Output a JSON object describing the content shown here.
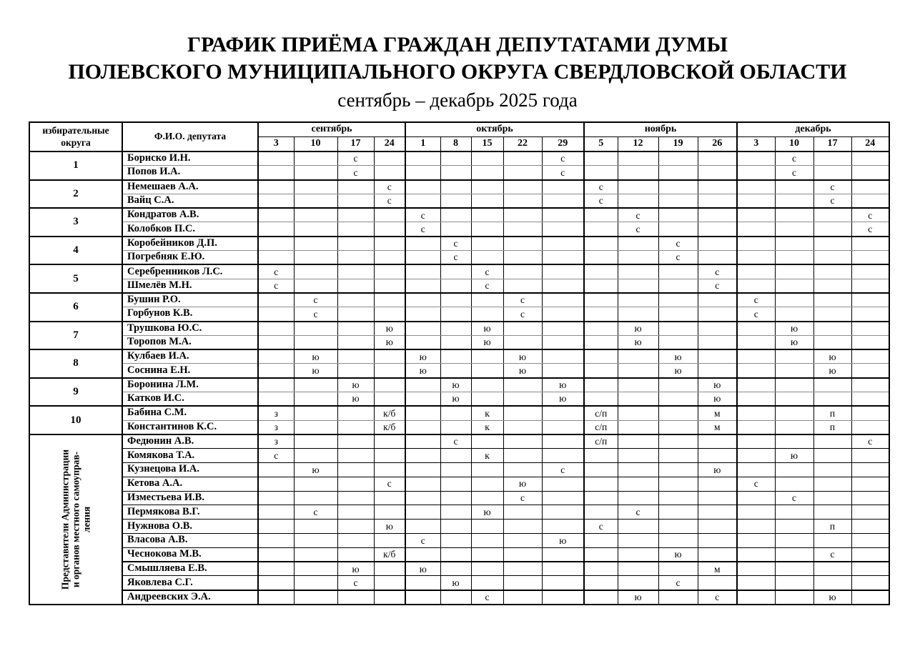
{
  "title": {
    "line1": "ГРАФИК ПРИЁМА ГРАЖДАН ДЕПУТАТАМИ ДУМЫ",
    "line2": "ПОЛЕВСКОГО МУНИЦИПАЛЬНОГО ОКРУГА СВЕРДЛОВСКОЙ ОБЛАСТИ",
    "line3": "сентябрь – декабрь 2025 года"
  },
  "table": {
    "header": {
      "col_district": "избирательные округа",
      "col_name": "Ф.И.О. депутата",
      "months": [
        {
          "label": "сентябрь",
          "days": [
            {
              "key": "sep3",
              "label": "3"
            },
            {
              "key": "sep10",
              "label": "10"
            },
            {
              "key": "sep17",
              "label": "17"
            },
            {
              "key": "sep24",
              "label": "24"
            }
          ]
        },
        {
          "label": "октябрь",
          "days": [
            {
              "key": "oct1",
              "label": "1"
            },
            {
              "key": "oct8",
              "label": "8"
            },
            {
              "key": "oct15",
              "label": "15"
            },
            {
              "key": "oct22",
              "label": "22"
            },
            {
              "key": "oct29",
              "label": "29"
            }
          ]
        },
        {
          "label": "ноябрь",
          "days": [
            {
              "key": "nov5",
              "label": "5"
            },
            {
              "key": "nov12",
              "label": "12"
            },
            {
              "key": "nov19",
              "label": "19"
            },
            {
              "key": "nov26",
              "label": "26"
            }
          ]
        },
        {
          "label": "декабрь",
          "days": [
            {
              "key": "dec3",
              "label": "3"
            },
            {
              "key": "dec10",
              "label": "10"
            },
            {
              "key": "dec17",
              "label": "17"
            },
            {
              "key": "dec24",
              "label": "24"
            }
          ]
        }
      ]
    },
    "districts": [
      {
        "number": "1",
        "deputies": [
          {
            "name": "Бориско И.Н.",
            "marks": {
              "sep17": "с",
              "oct29": "с",
              "dec10": "с"
            }
          },
          {
            "name": "Попов И.А.",
            "marks": {
              "sep17": "с",
              "oct29": "с",
              "dec10": "с"
            }
          }
        ]
      },
      {
        "number": "2",
        "deputies": [
          {
            "name": "Немешаев А.А.",
            "marks": {
              "sep24": "с",
              "nov5": "с",
              "dec17": "с"
            }
          },
          {
            "name": "Вайц С.А.",
            "marks": {
              "sep24": "с",
              "nov5": "с",
              "dec17": "с"
            }
          }
        ]
      },
      {
        "number": "3",
        "deputies": [
          {
            "name": "Кондратов А.В.",
            "marks": {
              "oct1": "с",
              "nov12": "с",
              "dec24": "с"
            }
          },
          {
            "name": "Колобков П.С.",
            "marks": {
              "oct1": "с",
              "nov12": "с",
              "dec24": "с"
            }
          }
        ]
      },
      {
        "number": "4",
        "deputies": [
          {
            "name": "Коробейников Д.П.",
            "marks": {
              "oct8": "с",
              "nov19": "с"
            }
          },
          {
            "name": "Погребняк Е.Ю.",
            "marks": {
              "oct8": "с",
              "nov19": "с"
            }
          }
        ]
      },
      {
        "number": "5",
        "deputies": [
          {
            "name": "Серебренников Л.С.",
            "marks": {
              "sep3": "с",
              "oct15": "с",
              "nov26": "с"
            }
          },
          {
            "name": "Шмелёв М.Н.",
            "marks": {
              "sep3": "с",
              "oct15": "с",
              "nov26": "с"
            }
          }
        ]
      },
      {
        "number": "6",
        "deputies": [
          {
            "name": "Бушин Р.О.",
            "marks": {
              "sep10": "с",
              "oct22": "с",
              "dec3": "с"
            }
          },
          {
            "name": "Горбунов К.В.",
            "marks": {
              "sep10": "с",
              "oct22": "с",
              "dec3": "с"
            }
          }
        ]
      },
      {
        "number": "7",
        "deputies": [
          {
            "name": "Трушкова Ю.С.",
            "marks": {
              "sep24": "ю",
              "oct15": "ю",
              "nov12": "ю",
              "dec10": "ю"
            }
          },
          {
            "name": "Торопов М.А.",
            "marks": {
              "sep24": "ю",
              "oct15": "ю",
              "nov12": "ю",
              "dec10": "ю"
            }
          }
        ]
      },
      {
        "number": "8",
        "deputies": [
          {
            "name": "Кулбаев И.А.",
            "marks": {
              "sep10": "ю",
              "oct1": "ю",
              "oct22": "ю",
              "nov19": "ю",
              "dec17": "ю"
            }
          },
          {
            "name": "Соснина Е.Н.",
            "marks": {
              "sep10": "ю",
              "oct1": "ю",
              "oct22": "ю",
              "nov19": "ю",
              "dec17": "ю"
            }
          }
        ]
      },
      {
        "number": "9",
        "deputies": [
          {
            "name": "Боронина Л.М.",
            "marks": {
              "sep17": "ю",
              "oct8": "ю",
              "oct29": "ю",
              "nov26": "ю"
            }
          },
          {
            "name": "Катков И.С.",
            "marks": {
              "sep17": "ю",
              "oct8": "ю",
              "oct29": "ю",
              "nov26": "ю"
            }
          }
        ]
      },
      {
        "number": "10",
        "deputies": [
          {
            "name": "Бабина С.М.",
            "marks": {
              "sep3": "з",
              "sep24": "к/б",
              "oct15": "к",
              "nov5": "с/п",
              "nov26": "м",
              "dec17": "п"
            }
          },
          {
            "name": "Константинов К.С.",
            "marks": {
              "sep3": "з",
              "sep24": "к/б",
              "oct15": "к",
              "nov5": "с/п",
              "nov26": "м",
              "dec17": "п"
            }
          }
        ]
      }
    ],
    "admin_section": {
      "label_lines": [
        "Представители Администрации",
        "и органов местного самоуправ-",
        "ления"
      ],
      "rows": [
        {
          "name": "Федюнин А.В.",
          "marks": {
            "sep3": "з",
            "oct8": "с",
            "nov5": "с/п",
            "dec24": "с"
          }
        },
        {
          "name": "Комякова Т.А.",
          "marks": {
            "sep3": "с",
            "oct15": "к",
            "dec10": "ю"
          }
        },
        {
          "name": "Кузнецова И.А.",
          "marks": {
            "sep10": "ю",
            "oct29": "с",
            "nov26": "ю"
          }
        },
        {
          "name": "Кетова А.А.",
          "marks": {
            "sep24": "с",
            "oct22": "ю",
            "dec3": "с"
          }
        },
        {
          "name": "Изместьева И.В.",
          "marks": {
            "oct22": "с",
            "dec10": "с"
          }
        },
        {
          "name": "Пермякова В.Г.",
          "marks": {
            "sep10": "с",
            "oct15": "ю",
            "nov12": "с"
          }
        },
        {
          "name": "Нужнова О.В.",
          "marks": {
            "sep24": "ю",
            "nov5": "с",
            "dec17": "п"
          }
        },
        {
          "name": "Власова А.В.",
          "marks": {
            "oct1": "с",
            "oct29": "ю"
          }
        },
        {
          "name": "Чеснокова М.В.",
          "marks": {
            "sep24": "к/б",
            "nov19": "ю",
            "dec17": "с"
          }
        },
        {
          "name": "Смышляева Е.В.",
          "marks": {
            "sep17": "ю",
            "oct1": "ю",
            "nov26": "м"
          }
        },
        {
          "name": "Яковлева С.Г.",
          "marks": {
            "sep17": "с",
            "oct8": "ю",
            "nov19": "с"
          }
        },
        {
          "name": "Андреевских Э.А.",
          "marks": {
            "oct15": "с",
            "nov12": "ю",
            "nov26": "с",
            "dec17": "ю"
          }
        }
      ]
    }
  }
}
